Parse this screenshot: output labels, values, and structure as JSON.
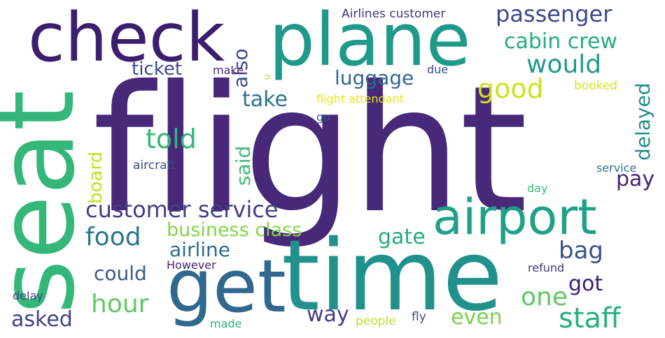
{
  "wordcloud": {
    "words": [
      {
        "text": "flight",
        "color": "#482878"
      },
      {
        "text": "seat",
        "color": "#35b779"
      },
      {
        "text": "check",
        "color": "#3b1f6e"
      },
      {
        "text": "plane",
        "color": "#1f9a8a"
      },
      {
        "text": "time",
        "color": "#21918c"
      },
      {
        "text": "get",
        "color": "#31688e"
      },
      {
        "text": "airport",
        "color": "#1fa188"
      },
      {
        "text": "passenger",
        "color": "#3e4a89"
      },
      {
        "text": "cabin crew",
        "color": "#25ab82"
      },
      {
        "text": "would",
        "color": "#1f9a8a"
      },
      {
        "text": "also",
        "color": "#3e4a89"
      },
      {
        "text": "ticket",
        "color": "#3e4a89"
      },
      {
        "text": "make",
        "color": "#482878"
      },
      {
        "text": "luggage",
        "color": "#31688e"
      },
      {
        "text": "good",
        "color": "#d0e11c"
      },
      {
        "text": "delayed",
        "color": "#238a8d"
      },
      {
        "text": "take",
        "color": "#2c728e"
      },
      {
        "text": "told",
        "color": "#35b779"
      },
      {
        "text": "said",
        "color": "#3bbb75"
      },
      {
        "text": "board",
        "color": "#c2df23"
      },
      {
        "text": "customer service",
        "color": "#433e85"
      },
      {
        "text": "pay",
        "color": "#482576"
      },
      {
        "text": "food",
        "color": "#2a788e"
      },
      {
        "text": "business class",
        "color": "#84d44b"
      },
      {
        "text": "gate",
        "color": "#25ab82"
      },
      {
        "text": "bag",
        "color": "#3b528b"
      },
      {
        "text": "airline",
        "color": "#2f6b8e"
      },
      {
        "text": "could",
        "color": "#38598c"
      },
      {
        "text": "hour",
        "color": "#60ca60"
      },
      {
        "text": "got",
        "color": "#3b1f6e"
      },
      {
        "text": "one",
        "color": "#5ec962"
      },
      {
        "text": "asked",
        "color": "#414487"
      },
      {
        "text": "way",
        "color": "#433e85"
      },
      {
        "text": "even",
        "color": "#7ad151"
      },
      {
        "text": "staff",
        "color": "#29af7f"
      },
      {
        "text": "Airlines customer",
        "color": "#46337e"
      },
      {
        "text": "due",
        "color": "#3e4a89"
      },
      {
        "text": "booked",
        "color": "#d8e219"
      },
      {
        "text": "flight attendant",
        "color": "#e5e419"
      },
      {
        "text": "go",
        "color": "#38598c"
      },
      {
        "text": "aircraft",
        "color": "#3e4a89"
      },
      {
        "text": "service",
        "color": "#2c728e"
      },
      {
        "text": "day",
        "color": "#3bbb75"
      },
      {
        "text": "However",
        "color": "#482475"
      },
      {
        "text": "refund",
        "color": "#46337e"
      },
      {
        "text": "delay",
        "color": "#414487"
      },
      {
        "text": "made",
        "color": "#2db27d"
      },
      {
        "text": "people",
        "color": "#bddf26"
      },
      {
        "text": "fly",
        "color": "#3e4a89"
      },
      {
        "text": "u",
        "color": "#c2df23"
      }
    ]
  }
}
